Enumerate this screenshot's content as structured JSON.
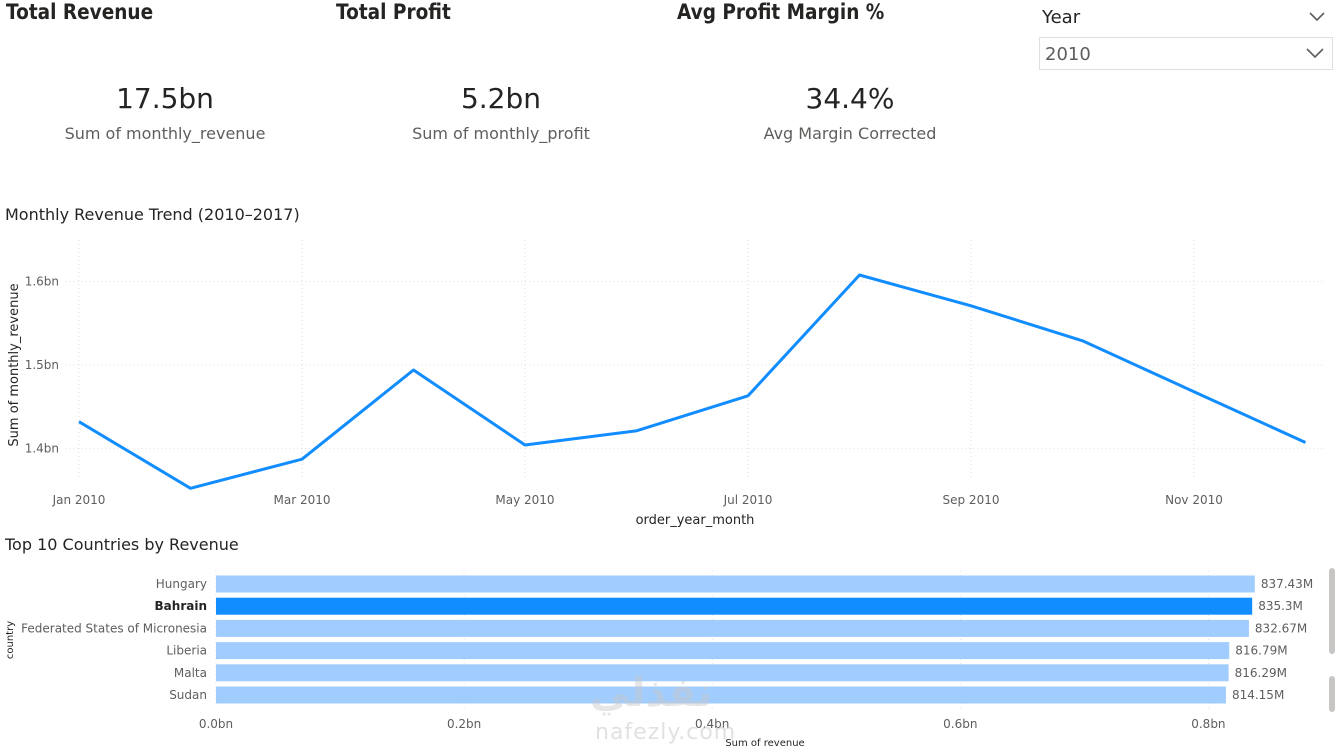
{
  "kpis": [
    {
      "title": "Total Revenue",
      "value": "17.5bn",
      "subtitle": "Sum of monthly_revenue"
    },
    {
      "title": "Total Profit",
      "value": "5.2bn",
      "subtitle": "Sum of monthly_profit"
    },
    {
      "title": "Avg Profit Margin %",
      "value": "34.4%",
      "subtitle": "Avg Margin Corrected"
    }
  ],
  "slicer": {
    "label": "Year",
    "selected": "2010"
  },
  "watermark": {
    "arabic": "نفذلي",
    "latin": "nafezly.com"
  },
  "chart_data": [
    {
      "type": "line",
      "title": "Monthly Revenue Trend (2010–2017)",
      "xlabel": "order_year_month",
      "ylabel": "Sum of monthly_revenue",
      "x": [
        "Jan 2010",
        "Feb 2010",
        "Mar 2010",
        "Apr 2010",
        "May 2010",
        "Jun 2010",
        "Jul 2010",
        "Aug 2010",
        "Sep 2010",
        "Oct 2010",
        "Nov 2010",
        "Dec 2010"
      ],
      "x_tick_labels": [
        "Jan 2010",
        "Mar 2010",
        "May 2010",
        "Jul 2010",
        "Sep 2010",
        "Nov 2010"
      ],
      "y_tick_labels": [
        "1.4bn",
        "1.5bn",
        "1.6bn"
      ],
      "y_ticks": [
        1.4,
        1.5,
        1.6
      ],
      "ylim": [
        1.35,
        1.65
      ],
      "y_unit": "bn",
      "series": [
        {
          "values": [
            1.432,
            1.352,
            1.387,
            1.494,
            1.404,
            1.421,
            1.463,
            1.608,
            1.571,
            1.529,
            1.468,
            1.407
          ]
        }
      ],
      "color": "#118dff",
      "grid": true
    },
    {
      "type": "bar",
      "orientation": "horizontal",
      "title": "Top 10 Countries by Revenue",
      "xlabel": "Sum of revenue",
      "ylabel": "country",
      "categories": [
        "Hungary",
        "Bahrain",
        "Federated States of Micronesia",
        "Liberia",
        "Malta",
        "Sudan"
      ],
      "values": [
        837.43,
        835.3,
        832.67,
        816.79,
        816.29,
        814.15
      ],
      "value_unit": "M",
      "data_labels": [
        "837.43M",
        "835.3M",
        "832.67M",
        "816.79M",
        "816.29M",
        "814.15M"
      ],
      "x_tick_labels": [
        "0.0bn",
        "0.2bn",
        "0.4bn",
        "0.6bn",
        "0.8bn"
      ],
      "x_ticks_millions": [
        0,
        200,
        400,
        600,
        800
      ],
      "highlighted": "Bahrain",
      "color": "#a0cdfe",
      "highlight_color": "#118dff",
      "grid": true
    }
  ]
}
